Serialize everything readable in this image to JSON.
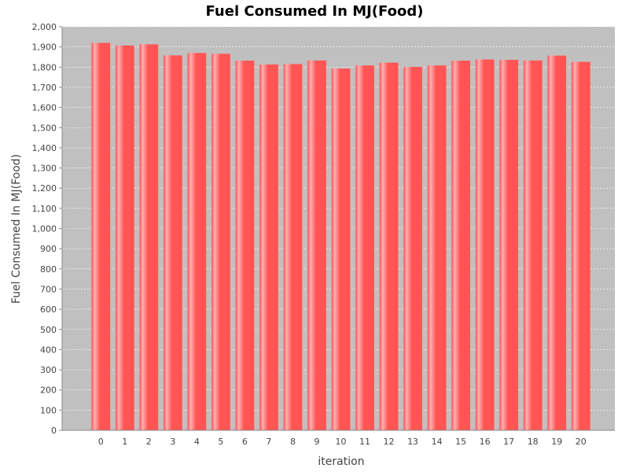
{
  "chart_data": {
    "type": "bar",
    "title": "Fuel Consumed In MJ(Food)",
    "xlabel": "iteration",
    "ylabel": "Fuel Consumed In MJ(Food)",
    "categories": [
      "0",
      "1",
      "2",
      "3",
      "4",
      "5",
      "6",
      "7",
      "8",
      "9",
      "10",
      "11",
      "12",
      "13",
      "14",
      "15",
      "16",
      "17",
      "18",
      "19",
      "20"
    ],
    "values": [
      1920,
      1907,
      1913,
      1858,
      1870,
      1866,
      1832,
      1813,
      1815,
      1833,
      1793,
      1808,
      1822,
      1801,
      1808,
      1832,
      1838,
      1836,
      1833,
      1857,
      1826
    ],
    "ylim": [
      0,
      2000
    ],
    "yticks": [
      0,
      100,
      200,
      300,
      400,
      500,
      600,
      700,
      800,
      900,
      1000,
      1100,
      1200,
      1300,
      1400,
      1500,
      1600,
      1700,
      1800,
      1900,
      2000
    ],
    "ytick_labels": [
      "0",
      "100",
      "200",
      "300",
      "400",
      "500",
      "600",
      "700",
      "800",
      "900",
      "1,000",
      "1,100",
      "1,200",
      "1,300",
      "1,400",
      "1,500",
      "1,600",
      "1,700",
      "1,800",
      "1,900",
      "2,000"
    ],
    "grid": true,
    "colors": {
      "plot_background": "#c0c0c0",
      "bar": "#ff5555",
      "bar_highlight": "#ffb0b0",
      "gridline": "#ffffff"
    }
  }
}
